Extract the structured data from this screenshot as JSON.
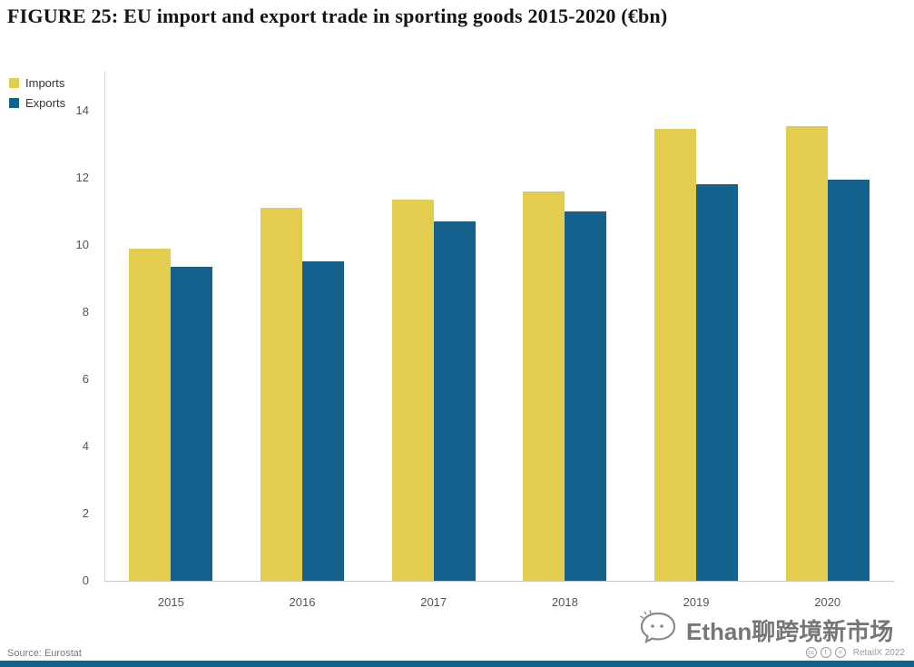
{
  "title": "FIGURE 25: EU import and export trade in sporting goods 2015-2020 (€bn)",
  "source": "Source: Eurostat",
  "watermark": {
    "text": "Ethan聊跨境新市场",
    "badge": "RetailX 2022",
    "license_icons": [
      "cc",
      "by",
      "nd"
    ]
  },
  "colors": {
    "imports": "#e4cd4e",
    "exports": "#15618e",
    "bottom_strip": "#15618e"
  },
  "chart_data": {
    "type": "bar",
    "title": "EU import and export trade in sporting goods 2015-2020 (€bn)",
    "categories": [
      "2015",
      "2016",
      "2017",
      "2018",
      "2019",
      "2020"
    ],
    "series": [
      {
        "name": "Imports",
        "color": "#e4cd4e",
        "values": [
          9.9,
          11.1,
          11.35,
          11.6,
          13.45,
          13.55
        ]
      },
      {
        "name": "Exports",
        "color": "#15618e",
        "values": [
          9.35,
          9.5,
          10.7,
          11.0,
          11.8,
          11.95
        ]
      }
    ],
    "xlabel": "",
    "ylabel": "",
    "ylim": [
      0,
      14
    ],
    "yticks": [
      0,
      2,
      4,
      6,
      8,
      10,
      12,
      14
    ],
    "grid": false,
    "legend_position": "top-left"
  }
}
